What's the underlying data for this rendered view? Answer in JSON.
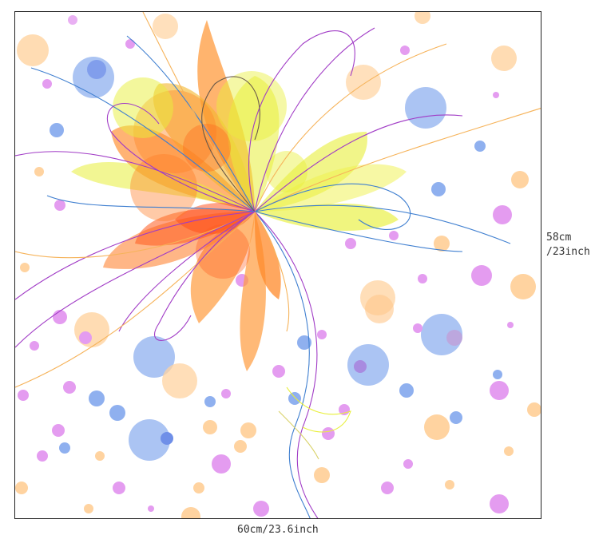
{
  "dimensions": {
    "width_label": "60cm/23.6inch",
    "height_label_line1": "58cm",
    "height_label_line2": "/23inch"
  },
  "colors": {
    "orange": "#ff9b3d",
    "deep_orange": "#ff5a1e",
    "yellow": "#e8ef3a",
    "peach": "#ffd3a0",
    "lilac": "#e49cf0",
    "blue": "#8fb0ef",
    "purple_line": "#a13cc6",
    "blue_line": "#3f7fd0"
  }
}
